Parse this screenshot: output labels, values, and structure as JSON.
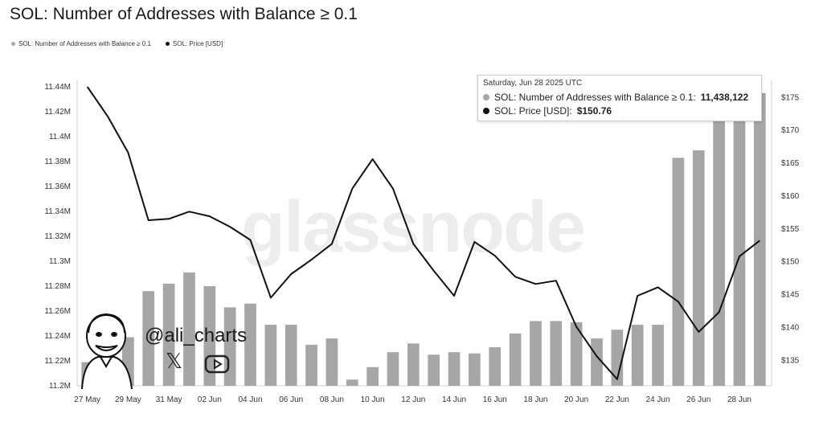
{
  "title": "SOL: Number of Addresses with Balance ≥ 0.1",
  "legend": [
    {
      "label": "SOL: Number of Addresses with Balance ≥ 0.1",
      "color": "#a6a6a6"
    },
    {
      "label": "SOL: Price [USD]",
      "color": "#111111"
    }
  ],
  "tooltip": {
    "date": "Saturday, Jun 28 2025 UTC",
    "row1_label": "SOL: Number of Addresses with Balance ≥ 0.1:",
    "row1_value": "11,438,122",
    "row2_label": "SOL: Price [USD]:",
    "row2_value": "$150.76"
  },
  "watermark": "glassnode",
  "branding": {
    "handle": "@ali_charts",
    "icons": [
      "x-icon",
      "youtube-icon",
      "avatar-icon"
    ]
  },
  "chart_data": {
    "type": "bar+line",
    "x": [
      "27 May",
      "28 May",
      "29 May",
      "30 May",
      "31 May",
      "01 Jun",
      "02 Jun",
      "03 Jun",
      "04 Jun",
      "05 Jun",
      "06 Jun",
      "07 Jun",
      "08 Jun",
      "09 Jun",
      "10 Jun",
      "11 Jun",
      "12 Jun",
      "13 Jun",
      "14 Jun",
      "15 Jun",
      "16 Jun",
      "17 Jun",
      "18 Jun",
      "19 Jun",
      "20 Jun",
      "21 Jun",
      "22 Jun",
      "23 Jun",
      "24 Jun",
      "25 Jun",
      "26 Jun",
      "27 Jun",
      "28 Jun",
      "29 Jun"
    ],
    "x_tick_labels": [
      "27 May",
      "29 May",
      "31 May",
      "02 Jun",
      "04 Jun",
      "06 Jun",
      "08 Jun",
      "10 Jun",
      "12 Jun",
      "14 Jun",
      "16 Jun",
      "18 Jun",
      "20 Jun",
      "22 Jun",
      "24 Jun",
      "26 Jun",
      "28 Jun"
    ],
    "series": [
      {
        "name": "SOL: Number of Addresses with Balance ≥ 0.1",
        "axis": "left",
        "type": "bar",
        "color": "#a6a6a6",
        "values": [
          11219000,
          11226000,
          11239000,
          11276000,
          11282000,
          11291000,
          11280000,
          11263000,
          11266000,
          11249000,
          11249000,
          11233000,
          11238000,
          11205000,
          11215000,
          11227000,
          11234000,
          11225000,
          11227000,
          11226000,
          11231000,
          11242000,
          11252000,
          11252000,
          11251000,
          11238000,
          11245000,
          11249000,
          11249000,
          11383000,
          11389000,
          11415000,
          11438122,
          11435000
        ]
      },
      {
        "name": "SOL: Price [USD]",
        "axis": "right",
        "type": "line",
        "color": "#111111",
        "values": [
          176.5,
          172.0,
          166.5,
          156.2,
          156.4,
          157.5,
          156.8,
          155.2,
          153.2,
          144.4,
          148.0,
          150.2,
          152.6,
          161.0,
          165.5,
          161.0,
          152.6,
          148.5,
          144.7,
          152.9,
          150.8,
          147.6,
          146.5,
          147.0,
          140.0,
          135.5,
          132.0,
          144.7,
          146.0,
          143.8,
          139.2,
          142.2,
          150.7,
          153.1
        ]
      }
    ],
    "y_left": {
      "ticks": [
        "11.2M",
        "11.22M",
        "11.24M",
        "11.26M",
        "11.28M",
        "11.3M",
        "11.32M",
        "11.34M",
        "11.36M",
        "11.38M",
        "11.4M",
        "11.42M",
        "11.44M"
      ],
      "range": [
        11200000,
        11440000
      ]
    },
    "y_right": {
      "ticks": [
        "$135",
        "$140",
        "$145",
        "$150",
        "$155",
        "$160",
        "$165",
        "$170",
        "$175"
      ],
      "range": [
        131,
        176.5
      ]
    },
    "grid": false
  }
}
